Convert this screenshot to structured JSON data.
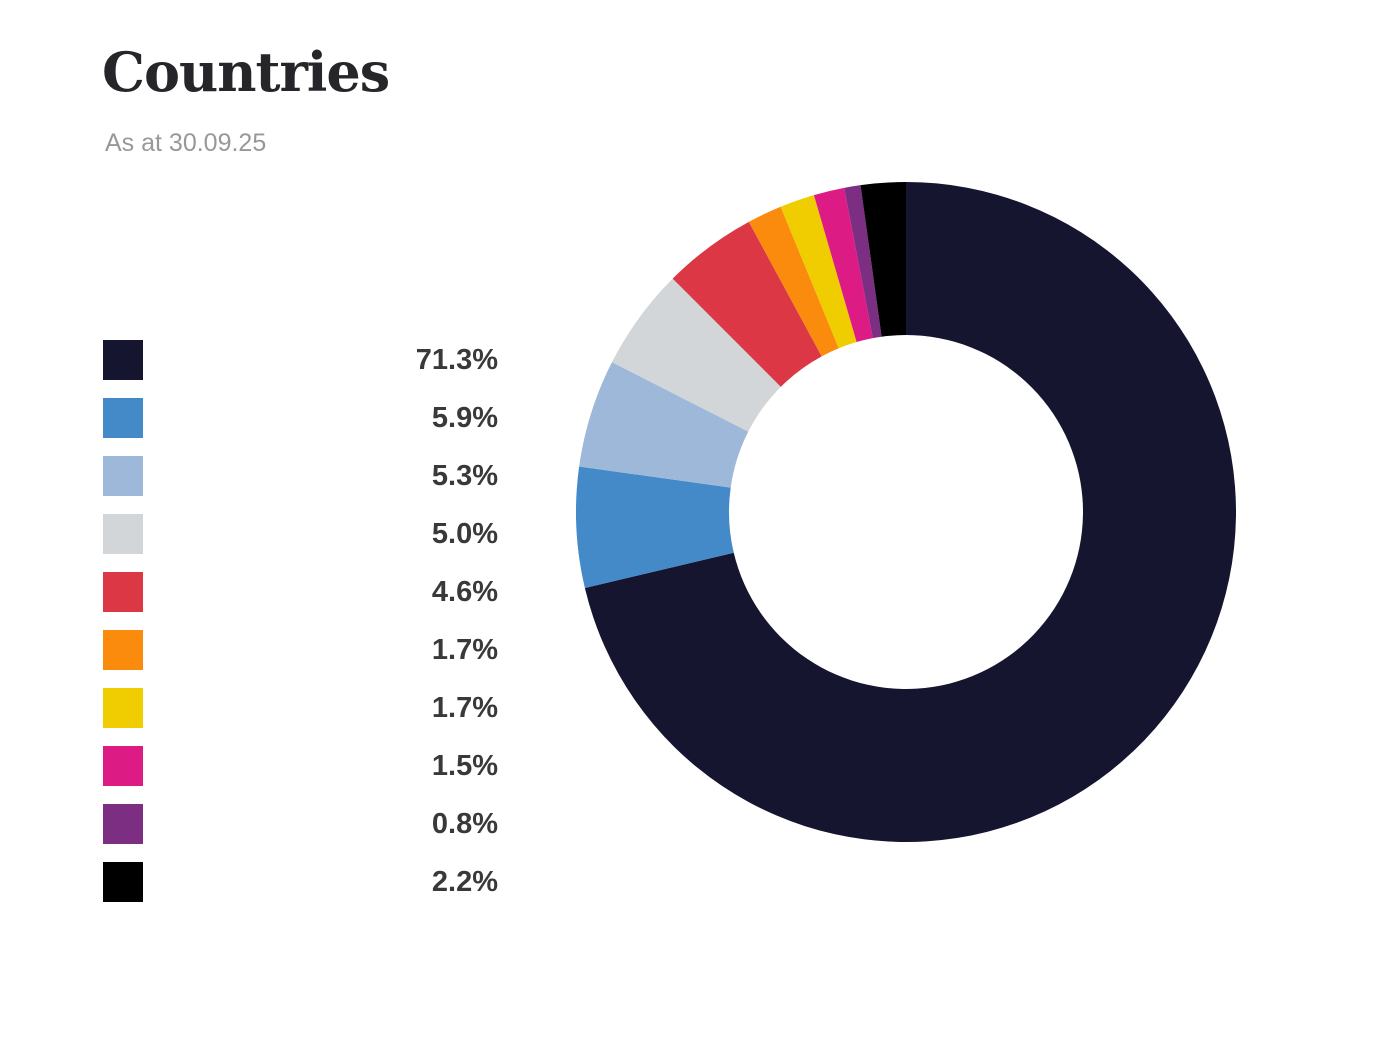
{
  "header": {
    "title": "Countries",
    "subtitle": "As at 30.09.25"
  },
  "chart_data": {
    "type": "pie",
    "title": "Countries",
    "subtitle": "As at 30.09.25",
    "donut": true,
    "inner_radius_ratio": 0.536,
    "start_angle_deg": 0,
    "direction": "clockwise",
    "legend_position": "left",
    "values_format": "percent",
    "series": [
      {
        "value": 71.3,
        "display": "71.3%",
        "color": "#151530"
      },
      {
        "value": 5.9,
        "display": "5.9%",
        "color": "#4489c8"
      },
      {
        "value": 5.3,
        "display": "5.3%",
        "color": "#9db8d8"
      },
      {
        "value": 5.0,
        "display": "5.0%",
        "color": "#d2d6d9"
      },
      {
        "value": 4.6,
        "display": "4.6%",
        "color": "#dc3745"
      },
      {
        "value": 1.7,
        "display": "1.7%",
        "color": "#fa8b0c"
      },
      {
        "value": 1.7,
        "display": "1.7%",
        "color": "#f0cd00"
      },
      {
        "value": 1.5,
        "display": "1.5%",
        "color": "#dd1b84"
      },
      {
        "value": 0.8,
        "display": "0.8%",
        "color": "#7b2e82"
      },
      {
        "value": 2.2,
        "display": "2.2%",
        "color": "#000000"
      }
    ]
  }
}
